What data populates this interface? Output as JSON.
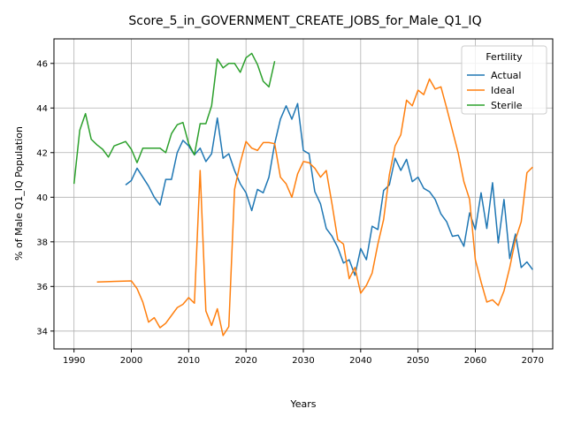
{
  "chart_data": {
    "type": "line",
    "title": "Score_5_in_GOVERNMENT_CREATE_JOBS_for_Male_Q1_IQ",
    "xlabel": "Years",
    "ylabel": "% of Male Q1_IQ Population",
    "xlim": [
      1986.5,
      2073.5
    ],
    "ylim": [
      33.2,
      47.1
    ],
    "xticks": [
      1990,
      2000,
      2010,
      2020,
      2030,
      2040,
      2050,
      2060,
      2070
    ],
    "yticks": [
      34,
      36,
      38,
      40,
      42,
      44,
      46
    ],
    "grid": true,
    "legend": {
      "title": "Fertility",
      "placement": "top-right"
    },
    "series": [
      {
        "name": "Actual",
        "color": "#1f77b4",
        "x": [
          1999,
          2000,
          2001,
          2002,
          2003,
          2004,
          2005,
          2006,
          2007,
          2008,
          2009,
          2010,
          2011,
          2012,
          2013,
          2014,
          2015,
          2016,
          2017,
          2018,
          2019,
          2020,
          2021,
          2022,
          2023,
          2024,
          2025,
          2026,
          2027,
          2028,
          2029,
          2030,
          2031,
          2032,
          2033,
          2034,
          2035,
          2036,
          2037,
          2038,
          2039,
          2040,
          2041,
          2042,
          2043,
          2044,
          2045,
          2046,
          2047,
          2048,
          2049,
          2050,
          2051,
          2052,
          2053,
          2054,
          2055,
          2056,
          2057,
          2058,
          2059,
          2060,
          2061,
          2062,
          2063,
          2064,
          2065,
          2066,
          2067,
          2068,
          2069,
          2070
        ],
        "y": [
          40.55,
          40.75,
          41.3,
          40.9,
          40.5,
          40.0,
          39.65,
          40.8,
          40.8,
          42.0,
          42.55,
          42.3,
          41.9,
          42.2,
          41.6,
          41.95,
          43.55,
          41.75,
          41.95,
          41.2,
          40.6,
          40.2,
          39.4,
          40.35,
          40.2,
          40.9,
          42.4,
          43.5,
          44.1,
          43.5,
          44.2,
          42.1,
          41.95,
          40.25,
          39.7,
          38.6,
          38.25,
          37.75,
          37.05,
          37.2,
          36.5,
          37.7,
          37.2,
          38.7,
          38.55,
          40.3,
          40.55,
          41.75,
          41.2,
          41.7,
          40.7,
          40.9,
          40.4,
          40.25,
          39.9,
          39.25,
          38.9,
          38.25,
          38.3,
          37.8,
          39.3,
          38.55,
          40.2,
          38.6,
          40.65,
          37.95,
          39.9,
          37.25,
          38.35,
          36.85,
          37.1,
          36.75
        ]
      },
      {
        "name": "Ideal",
        "color": "#ff7f0e",
        "x": [
          1994,
          2000,
          2001,
          2002,
          2003,
          2004,
          2005,
          2006,
          2007,
          2008,
          2009,
          2010,
          2011,
          2012,
          2013,
          2014,
          2015,
          2016,
          2017,
          2018,
          2019,
          2020,
          2021,
          2022,
          2023,
          2024,
          2025,
          2026,
          2027,
          2028,
          2029,
          2030,
          2031,
          2032,
          2033,
          2034,
          2035,
          2036,
          2037,
          2038,
          2039,
          2040,
          2041,
          2042,
          2043,
          2044,
          2045,
          2046,
          2047,
          2048,
          2049,
          2050,
          2051,
          2052,
          2053,
          2054,
          2055,
          2056,
          2057,
          2058,
          2059,
          2060,
          2061,
          2062,
          2063,
          2064,
          2065,
          2066,
          2067,
          2068,
          2069,
          2070
        ],
        "y": [
          36.2,
          36.25,
          35.9,
          35.3,
          34.4,
          34.6,
          34.15,
          34.35,
          34.7,
          35.05,
          35.2,
          35.5,
          35.25,
          41.2,
          34.9,
          34.25,
          35.0,
          33.8,
          34.2,
          40.35,
          41.55,
          42.5,
          42.2,
          42.1,
          42.45,
          42.45,
          42.4,
          40.9,
          40.6,
          40.0,
          41.05,
          41.6,
          41.55,
          41.3,
          40.9,
          41.2,
          39.7,
          38.1,
          37.9,
          36.35,
          36.85,
          35.7,
          36.05,
          36.6,
          37.9,
          39.0,
          41.0,
          42.3,
          42.8,
          44.35,
          44.1,
          44.8,
          44.6,
          45.3,
          44.85,
          44.95,
          44.0,
          43.0,
          42.0,
          40.7,
          39.9,
          37.2,
          36.2,
          35.3,
          35.4,
          35.15,
          35.8,
          36.85,
          38.1,
          38.9,
          41.1,
          41.35
        ]
      },
      {
        "name": "Sterile",
        "color": "#2ca02c",
        "x": [
          1990,
          1991,
          1992,
          1993,
          1994,
          1995,
          1996,
          1997,
          1998,
          1999,
          2000,
          2001,
          2002,
          2003,
          2004,
          2005,
          2006,
          2007,
          2008,
          2009,
          2010,
          2011,
          2012,
          2013,
          2014,
          2015,
          2016,
          2017,
          2018,
          2019,
          2020,
          2021,
          2022,
          2023,
          2024,
          2025
        ],
        "y": [
          40.6,
          43.0,
          43.75,
          42.6,
          42.35,
          42.15,
          41.8,
          42.3,
          42.4,
          42.5,
          42.15,
          41.55,
          42.2,
          42.2,
          42.2,
          42.2,
          42.0,
          42.85,
          43.25,
          43.35,
          42.4,
          41.9,
          43.3,
          43.3,
          44.1,
          46.2,
          45.8,
          46.0,
          46.0,
          45.6,
          46.25,
          46.45,
          45.95,
          45.2,
          44.95,
          46.1
        ]
      }
    ]
  }
}
